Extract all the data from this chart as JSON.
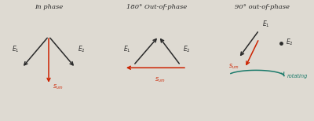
{
  "bg_color": "#dedad2",
  "title1": "In phase",
  "title2": "180° Out-of-phase",
  "title3": "90° out-of-phase",
  "ink_color": "#2a2a2a",
  "sum_color": "#cc2200",
  "teal_color": "#1a7a6a"
}
